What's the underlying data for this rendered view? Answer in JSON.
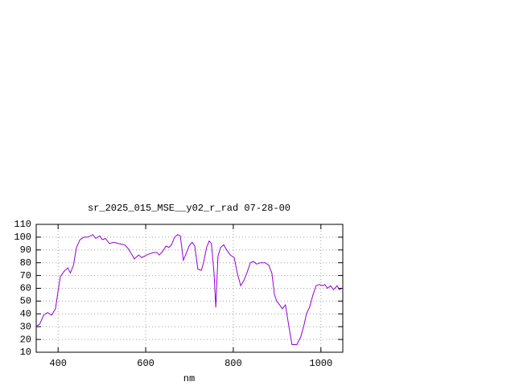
{
  "chart_data": {
    "type": "line",
    "title": "sr_2025_015_MSE__y02_r_rad 07-28-00",
    "x_label": "nm",
    "x": [
      349,
      358,
      367,
      376,
      385,
      394,
      400,
      405,
      413,
      422,
      428,
      435,
      442,
      450,
      459,
      468,
      479,
      486,
      495,
      501,
      508,
      517,
      527,
      538,
      552,
      560,
      569,
      574,
      584,
      591,
      602,
      609,
      618,
      626,
      631,
      639,
      646,
      653,
      659,
      666,
      673,
      679,
      686,
      692,
      699,
      706,
      712,
      719,
      727,
      732,
      739,
      745,
      750,
      756,
      760,
      765,
      771,
      778,
      785,
      793,
      802,
      809,
      817,
      824,
      831,
      839,
      846,
      853,
      862,
      873,
      881,
      888,
      894,
      899,
      906,
      912,
      919,
      927,
      934,
      945,
      954,
      962,
      967,
      974,
      982,
      989,
      996,
      1004,
      1009,
      1015,
      1022,
      1029,
      1037,
      1042,
      1048
    ],
    "series": [
      {
        "color": "#9400d3",
        "values": [
          30,
          32,
          39,
          41,
          39,
          44,
          58,
          69,
          73,
          76,
          72,
          78,
          92,
          98,
          100,
          100,
          102,
          99,
          101,
          98,
          99,
          95,
          96,
          95,
          94,
          91,
          86,
          83,
          86,
          84,
          86,
          87,
          88,
          88,
          86,
          89,
          93,
          92,
          94,
          100,
          102,
          101,
          82,
          87,
          93,
          96,
          93,
          75,
          74,
          80,
          92,
          97,
          95,
          72,
          45,
          85,
          92,
          94,
          90,
          86,
          84,
          72,
          62,
          66,
          72,
          80,
          81,
          79,
          80,
          80,
          78,
          72,
          55,
          50,
          47,
          44,
          47,
          30,
          16,
          16,
          22,
          32,
          40,
          45,
          55,
          62,
          63,
          62,
          63,
          60,
          62,
          59,
          62,
          59,
          60
        ]
      }
    ],
    "xlim": [
      350,
      1050
    ],
    "ylim": [
      10,
      110
    ],
    "xticks": [
      400,
      600,
      800,
      1000
    ],
    "yticks": [
      10,
      20,
      30,
      40,
      50,
      60,
      70,
      80,
      90,
      100,
      110
    ],
    "grid": true
  }
}
